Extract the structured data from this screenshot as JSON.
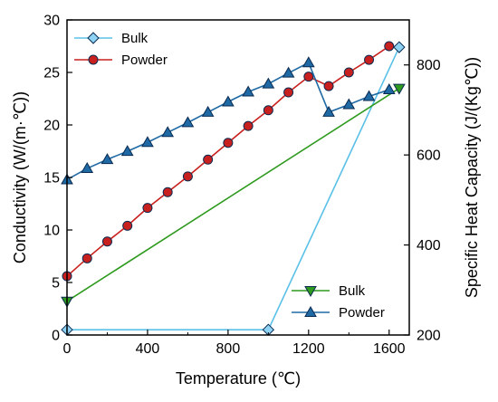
{
  "chart_data": {
    "type": "line",
    "xlabel": "Temperature (℃)",
    "ylabel_left": "Conductivity  (W/(m·℃))",
    "ylabel_right": "Specific Heat Capacity  (J/(Kg℃))",
    "xlim": [
      0,
      1700
    ],
    "ylim_left": [
      0,
      30
    ],
    "ylim_right": [
      200,
      900
    ],
    "x_ticks": [
      "0",
      "400",
      "800",
      "1200",
      "1600"
    ],
    "x_tick_values": [
      0,
      400,
      800,
      1200,
      1600
    ],
    "y_left_ticks": [
      "0",
      "5",
      "10",
      "15",
      "20",
      "25",
      "30"
    ],
    "y_left_tick_values": [
      0,
      5,
      10,
      15,
      20,
      25,
      30
    ],
    "y_right_ticks": [
      "200",
      "400",
      "600",
      "800"
    ],
    "y_right_tick_values": [
      200,
      400,
      600,
      800
    ],
    "grid": false,
    "series": [
      {
        "name": "Bulk",
        "axis": "left",
        "color": "#5bc0e8",
        "marker": "diamond",
        "marker_fill": "#8fd3f4",
        "x": [
          0,
          1000,
          1650
        ],
        "y": [
          0.5,
          0.5,
          27.4
        ]
      },
      {
        "name": "Powder",
        "axis": "left",
        "color": "#c8201e",
        "marker": "circle",
        "marker_fill": "#c8201e",
        "x": [
          0,
          100,
          200,
          300,
          400,
          500,
          600,
          700,
          800,
          900,
          1000,
          1100,
          1200,
          1300,
          1400,
          1500,
          1600
        ],
        "y": [
          5.6,
          7.3,
          8.9,
          10.4,
          12.1,
          13.6,
          15.1,
          16.7,
          18.3,
          19.9,
          21.4,
          23.1,
          24.6,
          23.7,
          25.0,
          26.2,
          27.5
        ]
      },
      {
        "name": "Bulk",
        "axis": "right",
        "color": "#2e9a1e",
        "marker": "triangle-down",
        "marker_fill": "#2e9a1e",
        "x": [
          0,
          1650
        ],
        "y": [
          275,
          748
        ]
      },
      {
        "name": "Powder",
        "axis": "right",
        "color": "#1f6aa5",
        "marker": "triangle-up",
        "marker_fill": "#1f6aa5",
        "x": [
          0,
          100,
          200,
          300,
          400,
          500,
          600,
          700,
          800,
          900,
          1000,
          1100,
          1200,
          1300,
          1400,
          1500,
          1600
        ],
        "y": [
          545,
          570,
          590,
          608,
          628,
          650,
          672,
          695,
          718,
          740,
          758,
          782,
          805,
          695,
          712,
          730,
          745
        ]
      }
    ],
    "legend_top": {
      "placement": "top-left",
      "entries": [
        {
          "label": "Bulk",
          "color": "#5bc0e8",
          "marker": "diamond",
          "marker_fill": "#8fd3f4"
        },
        {
          "label": "Powder",
          "color": "#c8201e",
          "marker": "circle",
          "marker_fill": "#c8201e"
        }
      ]
    },
    "legend_bottom": {
      "placement": "bottom-right",
      "entries": [
        {
          "label": "Bulk",
          "color": "#2e9a1e",
          "marker": "triangle-down",
          "marker_fill": "#2e9a1e"
        },
        {
          "label": "Powder",
          "color": "#1f6aa5",
          "marker": "triangle-up",
          "marker_fill": "#1f6aa5"
        }
      ]
    }
  }
}
